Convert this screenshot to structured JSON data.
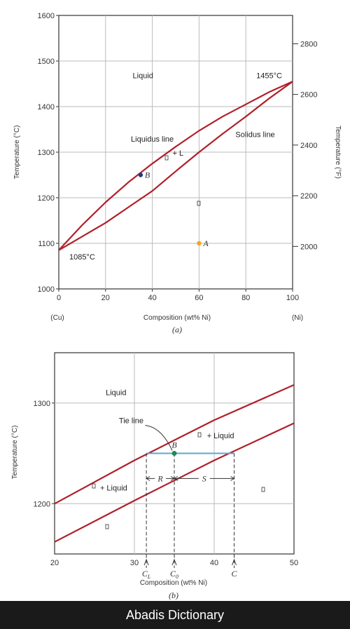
{
  "chart_data": [
    {
      "type": "line",
      "panel_label": "(a)",
      "xlabel": "Composition (wt% Ni)",
      "ylabel": "Temperature (°C)",
      "y2label": "Temperature (°F)",
      "xlim": [
        0,
        100
      ],
      "ylim": [
        1000,
        1600
      ],
      "x_ticks": [
        "0",
        "20",
        "40",
        "60",
        "80",
        "100"
      ],
      "x_tick_values": [
        0,
        20,
        40,
        60,
        80,
        100
      ],
      "y_ticks": [
        "1000",
        "1100",
        "1200",
        "1300",
        "1400",
        "1500",
        "1600"
      ],
      "y_tick_values": [
        1000,
        1100,
        1200,
        1300,
        1400,
        1500,
        1600
      ],
      "y2_ticks": [
        "2000",
        "2200",
        "2400",
        "2600",
        "2800"
      ],
      "y2_tick_values_celsius": [
        1093.3,
        1204.4,
        1315.6,
        1426.7,
        1537.8
      ],
      "x_end_labels": {
        "left": "(Cu)",
        "right": "(Ni)"
      },
      "series": [
        {
          "name": "Liquidus line",
          "x": [
            0,
            10,
            20,
            30,
            40,
            50,
            60,
            70,
            80,
            90,
            100
          ],
          "y": [
            1085,
            1140,
            1190,
            1235,
            1275,
            1312,
            1347,
            1378,
            1405,
            1432,
            1455
          ]
        },
        {
          "name": "Solidus line",
          "x": [
            0,
            10,
            20,
            30,
            40,
            50,
            60,
            70,
            80,
            90,
            100
          ],
          "y": [
            1085,
            1115,
            1145,
            1180,
            1215,
            1258,
            1300,
            1340,
            1378,
            1418,
            1455
          ]
        }
      ],
      "points": [
        {
          "label": "B",
          "x": 35,
          "y": 1250,
          "color": "#1f3c88"
        },
        {
          "label": "A",
          "x": 60,
          "y": 1100,
          "color": "#f5a623"
        }
      ],
      "annotations": [
        {
          "text": "Liquid",
          "x": 36,
          "y": 1462
        },
        {
          "text": "1455°C",
          "x": 90,
          "y": 1462
        },
        {
          "text": "Liquidus line",
          "x": 40,
          "y": 1323
        },
        {
          "text": "Solidus line",
          "x": 84,
          "y": 1333
        },
        {
          "text": "+ L",
          "x": 51,
          "y": 1292
        },
        {
          "text": "1085°C",
          "x": 10,
          "y": 1065
        }
      ],
      "grid": true
    },
    {
      "type": "line",
      "panel_label": "(b)",
      "xlabel": "Composition (wt% Ni)",
      "ylabel": "Temperature (°C)",
      "xlim": [
        20,
        50
      ],
      "ylim": [
        1150,
        1350
      ],
      "x_ticks": [
        "20",
        "30",
        "40",
        "50"
      ],
      "x_tick_values": [
        20,
        30,
        40,
        50
      ],
      "y_ticks": [
        "1200",
        "1300"
      ],
      "y_tick_values": [
        1200,
        1300
      ],
      "series": [
        {
          "name": "Liquidus",
          "x": [
            20,
            30,
            40,
            50
          ],
          "y": [
            1200,
            1243,
            1283,
            1318
          ]
        },
        {
          "name": "Solidus",
          "x": [
            20,
            30,
            40,
            50
          ],
          "y": [
            1162,
            1203,
            1243,
            1280
          ]
        }
      ],
      "tie_line": {
        "y": 1250,
        "x_start": 31.5,
        "x_end": 42.5,
        "color": "#5ba7d6"
      },
      "points": [
        {
          "label": "B",
          "x": 35,
          "y": 1250,
          "color": "#1e8a5a"
        }
      ],
      "composition_marks": [
        {
          "label": "C",
          "sub": "L",
          "x": 31.5
        },
        {
          "label": "C",
          "sub": "0",
          "x": 35
        },
        {
          "label": "C",
          "sub": "",
          "x": 42.5
        }
      ],
      "segments": [
        {
          "label": "R",
          "x_start": 31.5,
          "x_end": 35
        },
        {
          "label": "S",
          "x_start": 35,
          "x_end": 42.5
        }
      ],
      "annotations": [
        {
          "text": "Liquid",
          "x": 27.7,
          "y": 1308
        },
        {
          "text": "Tie line",
          "x": 29.6,
          "y": 1280
        },
        {
          "text": "+ Liquid",
          "x": 40.8,
          "y": 1265
        },
        {
          "text": "+ Liquid",
          "x": 27.4,
          "y": 1213
        }
      ],
      "grid": true
    }
  ],
  "footer": {
    "brand": "Abadis Dictionary"
  }
}
